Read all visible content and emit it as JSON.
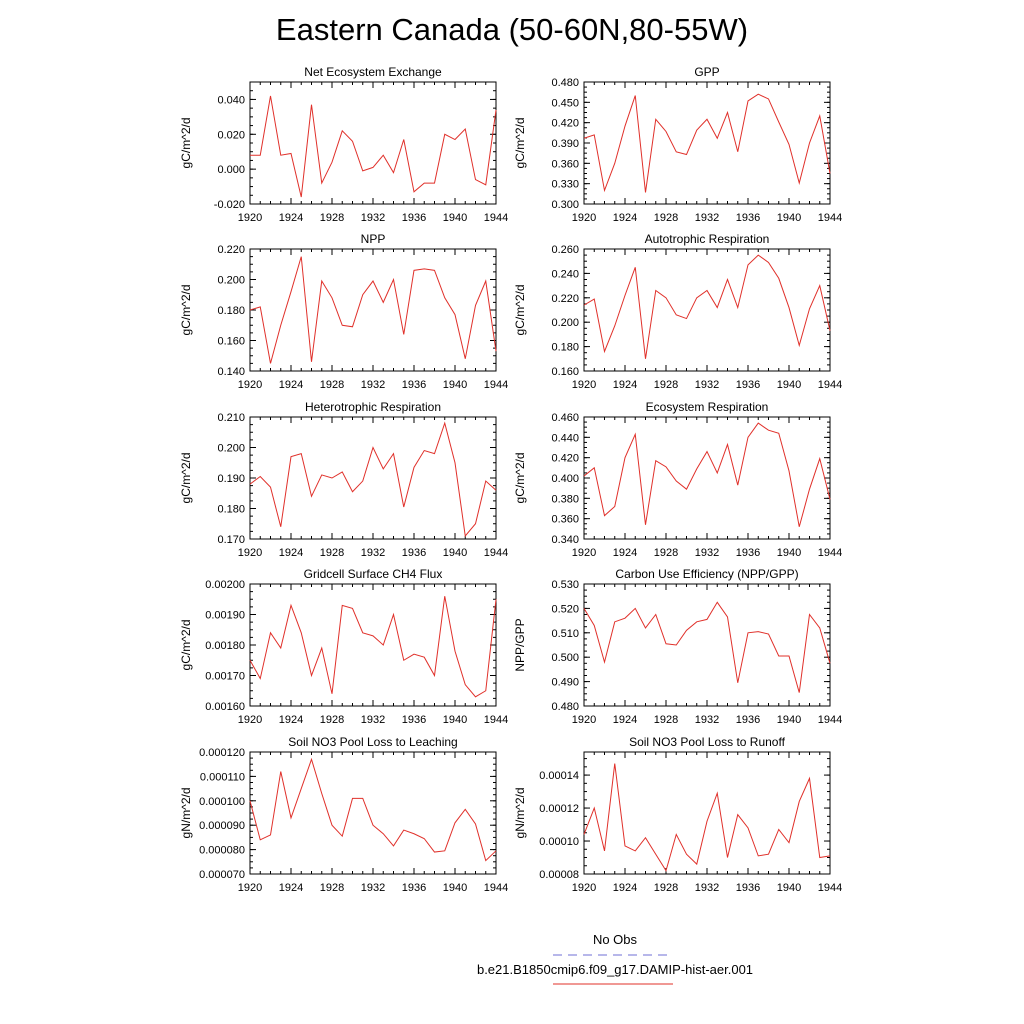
{
  "title": "Eastern Canada (50-60N,80-55W)",
  "legend": [
    {
      "label": "No Obs",
      "color": "#6f6fd6",
      "dashed": true
    },
    {
      "label": "b.e21.B1850cmip6.f09_g17.DAMIP-hist-aer.001",
      "color": "#e0302a",
      "dashed": false
    }
  ],
  "chart_data": [
    {
      "type": "line",
      "title": "Net Ecosystem Exchange",
      "xlabel": "",
      "ylabel": "gC/m^2/d",
      "xlim": [
        1920,
        1944
      ],
      "ylim": [
        -0.02,
        0.05
      ],
      "yticks": [
        "-0.020",
        "0.000",
        "0.020",
        "0.040"
      ],
      "xticks": [
        "1920",
        "1924",
        "1928",
        "1932",
        "1936",
        "1940",
        "1944"
      ],
      "x": [
        1920,
        1921,
        1922,
        1923,
        1924,
        1925,
        1926,
        1927,
        1928,
        1929,
        1930,
        1931,
        1932,
        1933,
        1934,
        1935,
        1936,
        1937,
        1938,
        1939,
        1940,
        1941,
        1942,
        1943,
        1944
      ],
      "series": [
        {
          "color": "#e0302a",
          "values": [
            0.008,
            0.008,
            0.042,
            0.008,
            0.009,
            -0.016,
            0.037,
            -0.008,
            0.004,
            0.022,
            0.016,
            -0.001,
            0.001,
            0.008,
            -0.002,
            0.017,
            -0.013,
            -0.008,
            -0.008,
            0.02,
            0.017,
            0.023,
            -0.006,
            -0.009,
            0.034
          ]
        }
      ]
    },
    {
      "type": "line",
      "title": "GPP",
      "xlabel": "",
      "ylabel": "gC/m^2/d",
      "xlim": [
        1920,
        1944
      ],
      "ylim": [
        0.3,
        0.48
      ],
      "yticks": [
        "0.300",
        "0.330",
        "0.360",
        "0.390",
        "0.420",
        "0.450",
        "0.480"
      ],
      "xticks": [
        "1920",
        "1924",
        "1928",
        "1932",
        "1936",
        "1940",
        "1944"
      ],
      "x": [
        1920,
        1921,
        1922,
        1923,
        1924,
        1925,
        1926,
        1927,
        1928,
        1929,
        1930,
        1931,
        1932,
        1933,
        1934,
        1935,
        1936,
        1937,
        1938,
        1939,
        1940,
        1941,
        1942,
        1943,
        1944
      ],
      "series": [
        {
          "color": "#e0302a",
          "values": [
            0.397,
            0.402,
            0.32,
            0.36,
            0.415,
            0.46,
            0.317,
            0.425,
            0.407,
            0.377,
            0.373,
            0.409,
            0.425,
            0.397,
            0.435,
            0.377,
            0.452,
            0.462,
            0.455,
            0.421,
            0.388,
            0.331,
            0.39,
            0.43,
            0.345
          ]
        }
      ]
    },
    {
      "type": "line",
      "title": "NPP",
      "xlabel": "",
      "ylabel": "gC/m^2/d",
      "xlim": [
        1920,
        1944
      ],
      "ylim": [
        0.14,
        0.22
      ],
      "yticks": [
        "0.140",
        "0.160",
        "0.180",
        "0.200",
        "0.220"
      ],
      "xticks": [
        "1920",
        "1924",
        "1928",
        "1932",
        "1936",
        "1940",
        "1944"
      ],
      "x": [
        1920,
        1921,
        1922,
        1923,
        1924,
        1925,
        1926,
        1927,
        1928,
        1929,
        1930,
        1931,
        1932,
        1933,
        1934,
        1935,
        1936,
        1937,
        1938,
        1939,
        1940,
        1941,
        1942,
        1943,
        1944
      ],
      "series": [
        {
          "color": "#e0302a",
          "values": [
            0.18,
            0.182,
            0.145,
            0.17,
            0.192,
            0.215,
            0.146,
            0.199,
            0.188,
            0.17,
            0.169,
            0.19,
            0.199,
            0.185,
            0.2,
            0.164,
            0.206,
            0.207,
            0.206,
            0.188,
            0.177,
            0.148,
            0.183,
            0.199,
            0.153
          ]
        }
      ]
    },
    {
      "type": "line",
      "title": "Autotrophic Respiration",
      "xlabel": "",
      "ylabel": "gC/m^2/d",
      "xlim": [
        1920,
        1944
      ],
      "ylim": [
        0.16,
        0.26
      ],
      "yticks": [
        "0.160",
        "0.180",
        "0.200",
        "0.220",
        "0.240",
        "0.260"
      ],
      "xticks": [
        "1920",
        "1924",
        "1928",
        "1932",
        "1936",
        "1940",
        "1944"
      ],
      "x": [
        1920,
        1921,
        1922,
        1923,
        1924,
        1925,
        1926,
        1927,
        1928,
        1929,
        1930,
        1931,
        1932,
        1933,
        1934,
        1935,
        1936,
        1937,
        1938,
        1939,
        1940,
        1941,
        1942,
        1943,
        1944
      ],
      "series": [
        {
          "color": "#e0302a",
          "values": [
            0.214,
            0.219,
            0.176,
            0.197,
            0.222,
            0.245,
            0.17,
            0.226,
            0.22,
            0.206,
            0.203,
            0.22,
            0.226,
            0.212,
            0.235,
            0.212,
            0.247,
            0.255,
            0.249,
            0.236,
            0.212,
            0.181,
            0.211,
            0.23,
            0.193
          ]
        }
      ]
    },
    {
      "type": "line",
      "title": "Heterotrophic Respiration",
      "xlabel": "",
      "ylabel": "gC/m^2/d",
      "xlim": [
        1920,
        1944
      ],
      "ylim": [
        0.17,
        0.21
      ],
      "yticks": [
        "0.170",
        "0.180",
        "0.190",
        "0.200",
        "0.210"
      ],
      "xticks": [
        "1920",
        "1924",
        "1928",
        "1932",
        "1936",
        "1940",
        "1944"
      ],
      "x": [
        1920,
        1921,
        1922,
        1923,
        1924,
        1925,
        1926,
        1927,
        1928,
        1929,
        1930,
        1931,
        1932,
        1933,
        1934,
        1935,
        1936,
        1937,
        1938,
        1939,
        1940,
        1941,
        1942,
        1943,
        1944
      ],
      "series": [
        {
          "color": "#e0302a",
          "values": [
            0.188,
            0.1905,
            0.187,
            0.174,
            0.197,
            0.198,
            0.184,
            0.191,
            0.19,
            0.192,
            0.1855,
            0.189,
            0.2,
            0.193,
            0.198,
            0.1805,
            0.1935,
            0.199,
            0.198,
            0.208,
            0.195,
            0.171,
            0.175,
            0.189,
            0.186
          ]
        }
      ]
    },
    {
      "type": "line",
      "title": "Ecosystem Respiration",
      "xlabel": "",
      "ylabel": "gC/m^2/d",
      "xlim": [
        1920,
        1944
      ],
      "ylim": [
        0.34,
        0.46
      ],
      "yticks": [
        "0.340",
        "0.360",
        "0.380",
        "0.400",
        "0.420",
        "0.440",
        "0.460"
      ],
      "xticks": [
        "1920",
        "1924",
        "1928",
        "1932",
        "1936",
        "1940",
        "1944"
      ],
      "x": [
        1920,
        1921,
        1922,
        1923,
        1924,
        1925,
        1926,
        1927,
        1928,
        1929,
        1930,
        1931,
        1932,
        1933,
        1934,
        1935,
        1936,
        1937,
        1938,
        1939,
        1940,
        1941,
        1942,
        1943,
        1944
      ],
      "series": [
        {
          "color": "#e0302a",
          "values": [
            0.402,
            0.41,
            0.363,
            0.372,
            0.42,
            0.443,
            0.354,
            0.417,
            0.411,
            0.397,
            0.389,
            0.409,
            0.426,
            0.405,
            0.433,
            0.393,
            0.44,
            0.454,
            0.447,
            0.444,
            0.407,
            0.352,
            0.389,
            0.419,
            0.379
          ]
        }
      ]
    },
    {
      "type": "line",
      "title": "Gridcell Surface CH4 Flux",
      "xlabel": "",
      "ylabel": "gC/m^2/d",
      "xlim": [
        1920,
        1944
      ],
      "ylim": [
        0.0016,
        0.002
      ],
      "yticks": [
        "0.00160",
        "0.00170",
        "0.00180",
        "0.00190",
        "0.00200"
      ],
      "xticks": [
        "1920",
        "1924",
        "1928",
        "1932",
        "1936",
        "1940",
        "1944"
      ],
      "x": [
        1920,
        1921,
        1922,
        1923,
        1924,
        1925,
        1926,
        1927,
        1928,
        1929,
        1930,
        1931,
        1932,
        1933,
        1934,
        1935,
        1936,
        1937,
        1938,
        1939,
        1940,
        1941,
        1942,
        1943,
        1944
      ],
      "series": [
        {
          "color": "#e0302a",
          "values": [
            0.00175,
            0.00169,
            0.00184,
            0.00179,
            0.00193,
            0.00184,
            0.0017,
            0.00179,
            0.00164,
            0.00193,
            0.00192,
            0.00184,
            0.00183,
            0.0018,
            0.0019,
            0.00175,
            0.00177,
            0.00176,
            0.0017,
            0.00196,
            0.00178,
            0.00167,
            0.00163,
            0.00165,
            0.00195
          ]
        }
      ]
    },
    {
      "type": "line",
      "title": "Carbon Use Efficiency (NPP/GPP)",
      "xlabel": "",
      "ylabel": "NPP/GPP",
      "xlim": [
        1920,
        1944
      ],
      "ylim": [
        0.48,
        0.53
      ],
      "yticks": [
        "0.480",
        "0.490",
        "0.500",
        "0.510",
        "0.520",
        "0.530"
      ],
      "xticks": [
        "1920",
        "1924",
        "1928",
        "1932",
        "1936",
        "1940",
        "1944"
      ],
      "x": [
        1920,
        1921,
        1922,
        1923,
        1924,
        1925,
        1926,
        1927,
        1928,
        1929,
        1930,
        1931,
        1932,
        1933,
        1934,
        1935,
        1936,
        1937,
        1938,
        1939,
        1940,
        1941,
        1942,
        1943,
        1944
      ],
      "series": [
        {
          "color": "#e0302a",
          "values": [
            0.52,
            0.513,
            0.498,
            0.5145,
            0.516,
            0.52,
            0.512,
            0.5175,
            0.5055,
            0.505,
            0.511,
            0.5145,
            0.5155,
            0.5225,
            0.5165,
            0.4895,
            0.51,
            0.5105,
            0.5095,
            0.5005,
            0.5005,
            0.4855,
            0.5175,
            0.512,
            0.4975
          ]
        }
      ]
    },
    {
      "type": "line",
      "title": "Soil NO3 Pool Loss to Leaching",
      "xlabel": "",
      "ylabel": "gN/m^2/d",
      "xlim": [
        1920,
        1944
      ],
      "ylim": [
        7e-05,
        0.00012
      ],
      "yticks": [
        "0.000070",
        "0.000080",
        "0.000090",
        "0.000100",
        "0.000110",
        "0.000120"
      ],
      "xticks": [
        "1920",
        "1924",
        "1928",
        "1932",
        "1936",
        "1940",
        "1944"
      ],
      "x": [
        1920,
        1921,
        1922,
        1923,
        1924,
        1925,
        1926,
        1927,
        1928,
        1929,
        1930,
        1931,
        1932,
        1933,
        1934,
        1935,
        1936,
        1937,
        1938,
        1939,
        1940,
        1941,
        1942,
        1943,
        1944
      ],
      "series": [
        {
          "color": "#e0302a",
          "values": [
            0.0001,
            8.4e-05,
            8.6e-05,
            0.000112,
            9.3e-05,
            0.000105,
            0.000117,
            0.000103,
            9e-05,
            8.55e-05,
            0.000101,
            0.000101,
            9e-05,
            8.65e-05,
            8.15e-05,
            8.8e-05,
            8.65e-05,
            8.45e-05,
            7.9e-05,
            7.95e-05,
            9.1e-05,
            9.65e-05,
            9.05e-05,
            7.55e-05,
            7.95e-05
          ]
        }
      ]
    },
    {
      "type": "line",
      "title": "Soil NO3 Pool Loss to Runoff",
      "xlabel": "",
      "ylabel": "gN/m^2/d",
      "xlim": [
        1920,
        1944
      ],
      "ylim": [
        8e-05,
        0.000154
      ],
      "yticks": [
        "0.00008",
        "0.00010",
        "0.00012",
        "0.00014"
      ],
      "xticks": [
        "1920",
        "1924",
        "1928",
        "1932",
        "1936",
        "1940",
        "1944"
      ],
      "x": [
        1920,
        1921,
        1922,
        1923,
        1924,
        1925,
        1926,
        1927,
        1928,
        1929,
        1930,
        1931,
        1932,
        1933,
        1934,
        1935,
        1936,
        1937,
        1938,
        1939,
        1940,
        1941,
        1942,
        1943,
        1944
      ],
      "series": [
        {
          "color": "#e0302a",
          "values": [
            0.000104,
            0.00012,
            9.4e-05,
            0.000147,
            9.7e-05,
            9.4e-05,
            0.000102,
            9.2e-05,
            8.2e-05,
            0.000104,
            9.2e-05,
            8.6e-05,
            0.000112,
            0.000129,
            9e-05,
            0.000116,
            0.000108,
            9.1e-05,
            9.2e-05,
            0.000107,
            9.9e-05,
            0.000124,
            0.000138,
            9e-05,
            9.1e-05
          ]
        }
      ]
    }
  ]
}
